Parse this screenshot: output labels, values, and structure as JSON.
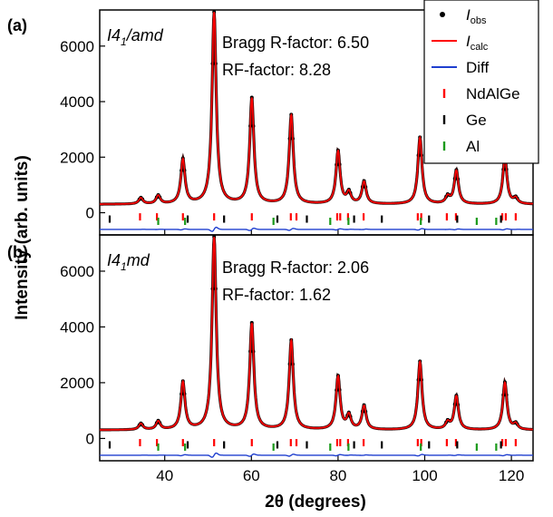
{
  "figure": {
    "xlabel": "2θ (degrees)",
    "ylabel": "Intensity (arb. units)"
  },
  "legend": {
    "placement": "top-right",
    "entries": [
      {
        "key": "obs",
        "main": "I",
        "sub": "obs",
        "kind": "dot",
        "color": "#000000"
      },
      {
        "key": "calc",
        "main": "I",
        "sub": "calc",
        "kind": "line",
        "color": "#ff0000"
      },
      {
        "key": "diff",
        "label": "Diff",
        "kind": "line",
        "color": "#1f3fcf"
      },
      {
        "key": "ndalge",
        "label": "NdAlGe",
        "kind": "tick",
        "color": "#ff0000"
      },
      {
        "key": "ge",
        "label": "Ge",
        "kind": "tick",
        "color": "#000000"
      },
      {
        "key": "al",
        "label": "Al",
        "kind": "tick",
        "color": "#1a9a1a"
      }
    ]
  },
  "chart_data": [
    {
      "panel": "(a)",
      "type": "line",
      "space_group": {
        "main": "I4",
        "sub": "1",
        "rest": "/amd"
      },
      "bragg_text": "Bragg R-factor: 6.50",
      "rf_text": "RF-factor: 8.28",
      "xlim": [
        25,
        125
      ],
      "ylim": [
        -800,
        7300
      ],
      "xticks": [
        40,
        60,
        80,
        100,
        120
      ],
      "yticks": [
        0,
        2000,
        4000,
        6000
      ],
      "background": 300,
      "peaks": [
        {
          "x": 34.5,
          "y": 520
        },
        {
          "x": 38.5,
          "y": 600
        },
        {
          "x": 44.2,
          "y": 1900
        },
        {
          "x": 51.4,
          "y": 7200
        },
        {
          "x": 60.1,
          "y": 4100
        },
        {
          "x": 69.2,
          "y": 3500
        },
        {
          "x": 80.0,
          "y": 2200
        },
        {
          "x": 82.5,
          "y": 700
        },
        {
          "x": 86.0,
          "y": 1100
        },
        {
          "x": 98.9,
          "y": 2700
        },
        {
          "x": 105.3,
          "y": 550
        },
        {
          "x": 107.3,
          "y": 1500
        },
        {
          "x": 118.5,
          "y": 2000
        },
        {
          "x": 121.0,
          "y": 500
        }
      ],
      "diff_offset": -600,
      "tick_rows": {
        "ndalge": {
          "y": -150,
          "x": [
            34.3,
            38.2,
            44.2,
            51.4,
            60.1,
            69.1,
            70.4,
            79.8,
            80.5,
            82.3,
            85.9,
            98.4,
            99.2,
            105.1,
            107.2,
            117.9,
            118.7,
            121.0
          ]
        },
        "ge": {
          "y": -230,
          "x": [
            27.3,
            45.3,
            53.7,
            66.0,
            72.8,
            83.7,
            90.1,
            101.0,
            107.5,
            117.6
          ]
        },
        "al": {
          "y": -310,
          "x": [
            38.5,
            44.7,
            65.1,
            78.2,
            82.4,
            99.1,
            112.0,
            116.5
          ]
        }
      }
    },
    {
      "panel": "(b)",
      "type": "line",
      "space_group": {
        "main": "I4",
        "sub": "1",
        "rest": "md"
      },
      "bragg_text": "Bragg R-factor: 2.06",
      "rf_text": "RF-factor: 1.62",
      "xlim": [
        25,
        125
      ],
      "ylim": [
        -800,
        7300
      ],
      "xticks": [
        40,
        60,
        80,
        100,
        120
      ],
      "yticks": [
        0,
        2000,
        4000,
        6000
      ],
      "background": 300,
      "peaks": [
        {
          "x": 34.5,
          "y": 520
        },
        {
          "x": 38.5,
          "y": 600
        },
        {
          "x": 44.2,
          "y": 2000
        },
        {
          "x": 51.4,
          "y": 7200
        },
        {
          "x": 60.1,
          "y": 4100
        },
        {
          "x": 69.2,
          "y": 3500
        },
        {
          "x": 80.0,
          "y": 2200
        },
        {
          "x": 82.5,
          "y": 800
        },
        {
          "x": 86.0,
          "y": 1150
        },
        {
          "x": 98.9,
          "y": 2750
        },
        {
          "x": 105.3,
          "y": 550
        },
        {
          "x": 107.3,
          "y": 1500
        },
        {
          "x": 118.5,
          "y": 2000
        },
        {
          "x": 121.0,
          "y": 500
        }
      ],
      "diff_offset": -600,
      "tick_rows": {
        "ndalge": {
          "y": -150,
          "x": [
            34.3,
            38.2,
            44.2,
            51.4,
            60.1,
            69.1,
            70.4,
            79.8,
            80.5,
            82.3,
            85.9,
            98.4,
            99.2,
            105.1,
            107.2,
            117.9,
            118.7,
            121.0
          ]
        },
        "ge": {
          "y": -230,
          "x": [
            27.3,
            45.3,
            53.7,
            66.0,
            72.8,
            83.7,
            90.1,
            101.0,
            107.5,
            117.6
          ]
        },
        "al": {
          "y": -310,
          "x": [
            38.5,
            44.7,
            65.1,
            78.2,
            82.4,
            99.1,
            112.0,
            116.5
          ]
        }
      }
    }
  ]
}
